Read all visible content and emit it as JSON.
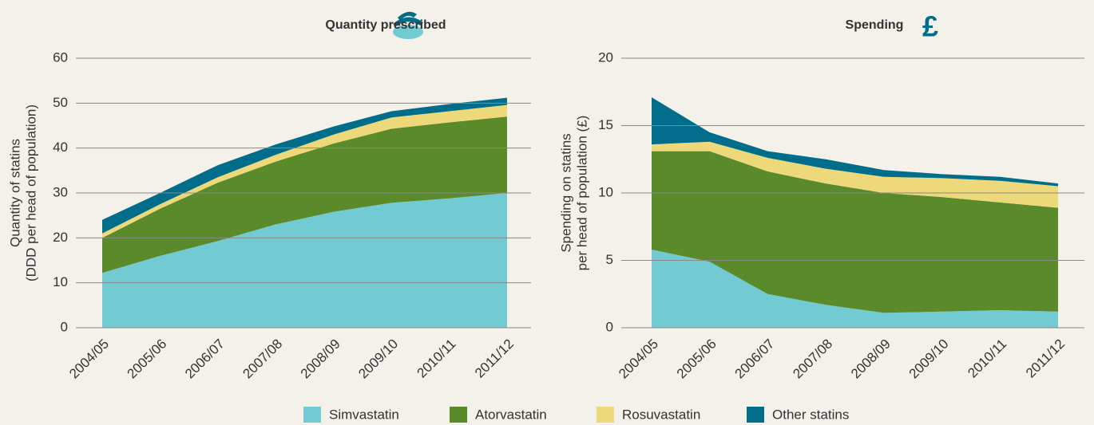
{
  "chart_data": [
    {
      "type": "stacked_area",
      "title": "Quantity prescribed",
      "ylabel": [
        "Quantity of statins",
        "(DDD per head of population)"
      ],
      "categories": [
        "2004/05",
        "2005/06",
        "2006/07",
        "2007/08",
        "2008/09",
        "2009/10",
        "2010/11",
        "2011/12"
      ],
      "ylim": [
        0,
        60
      ],
      "yticks": [
        0,
        10,
        20,
        30,
        40,
        50,
        60
      ],
      "grid": true,
      "series": [
        {
          "name": "Simvastatin",
          "color": "#72cad3",
          "values": [
            12.2,
            16,
            19.3,
            23,
            25.8,
            27.8,
            28.8,
            30
          ]
        },
        {
          "name": "Atorvastatin",
          "color": "#5b8a2a",
          "values": [
            7.8,
            10.5,
            13,
            14,
            15.2,
            16.5,
            16.9,
            17
          ]
        },
        {
          "name": "Rosuvastatin",
          "color": "#eed97a",
          "values": [
            1,
            1,
            1.2,
            1.5,
            2,
            2.5,
            2.5,
            2.6
          ]
        },
        {
          "name": "Other statins",
          "color": "#006e8a",
          "values": [
            3,
            2.5,
            2.7,
            2.3,
            1.8,
            1.4,
            1.6,
            1.6
          ]
        }
      ]
    },
    {
      "type": "stacked_area",
      "title": "Spending",
      "ylabel": [
        "Spending on statins",
        "per head of population (£)"
      ],
      "categories": [
        "2004/05",
        "2005/06",
        "2006/07",
        "2007/08",
        "2008/09",
        "2009/10",
        "2010/11",
        "2011/12"
      ],
      "ylim": [
        0,
        20
      ],
      "yticks": [
        0,
        5,
        10,
        15,
        20
      ],
      "grid": true,
      "series": [
        {
          "name": "Simvastatin",
          "color": "#72cad3",
          "values": [
            5.8,
            4.9,
            2.5,
            1.7,
            1.1,
            1.2,
            1.3,
            1.2
          ]
        },
        {
          "name": "Atorvastatin",
          "color": "#5b8a2a",
          "values": [
            7.3,
            8.2,
            9.1,
            9.0,
            8.9,
            8.5,
            8.0,
            7.7
          ]
        },
        {
          "name": "Rosuvastatin",
          "color": "#eed97a",
          "values": [
            0.5,
            0.7,
            1.0,
            1.1,
            1.2,
            1.4,
            1.6,
            1.6
          ]
        },
        {
          "name": "Other statins",
          "color": "#006e8a",
          "values": [
            3.5,
            0.7,
            0.5,
            0.7,
            0.5,
            0.3,
            0.3,
            0.2
          ]
        }
      ]
    }
  ]
}
